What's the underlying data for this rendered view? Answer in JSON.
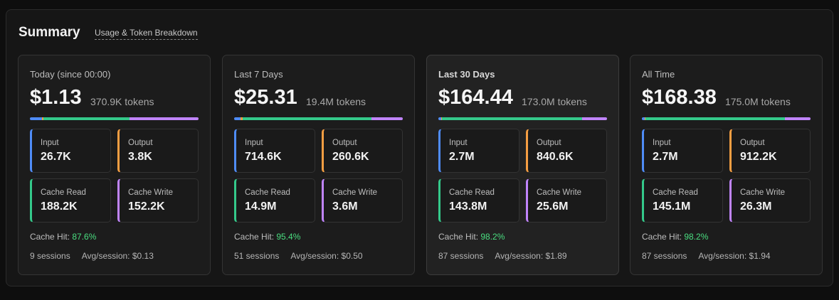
{
  "header": {
    "title": "Summary",
    "subtitle": "Usage & Token Breakdown"
  },
  "cards": [
    {
      "period": "Today (since 00:00)",
      "cost": "$1.13",
      "tokens": "370.9K tokens",
      "metrics": [
        {
          "label": "Input",
          "value": "26.7K"
        },
        {
          "label": "Output",
          "value": "3.8K"
        },
        {
          "label": "Cache Read",
          "value": "188.2K"
        },
        {
          "label": "Cache Write",
          "value": "152.2K"
        }
      ],
      "cache_hit_label": "Cache Hit:",
      "cache_hit": "87.6%",
      "sessions": "9 sessions",
      "avg_label": "Avg/session:",
      "avg": "$0.13"
    },
    {
      "period": "Last 7 Days",
      "cost": "$25.31",
      "tokens": "19.4M tokens",
      "metrics": [
        {
          "label": "Input",
          "value": "714.6K"
        },
        {
          "label": "Output",
          "value": "260.6K"
        },
        {
          "label": "Cache Read",
          "value": "14.9M"
        },
        {
          "label": "Cache Write",
          "value": "3.6M"
        }
      ],
      "cache_hit_label": "Cache Hit:",
      "cache_hit": "95.4%",
      "sessions": "51 sessions",
      "avg_label": "Avg/session:",
      "avg": "$0.50"
    },
    {
      "period": "Last 30 Days",
      "cost": "$164.44",
      "tokens": "173.0M tokens",
      "metrics": [
        {
          "label": "Input",
          "value": "2.7M"
        },
        {
          "label": "Output",
          "value": "840.6K"
        },
        {
          "label": "Cache Read",
          "value": "143.8M"
        },
        {
          "label": "Cache Write",
          "value": "25.6M"
        }
      ],
      "cache_hit_label": "Cache Hit:",
      "cache_hit": "98.2%",
      "sessions": "87 sessions",
      "avg_label": "Avg/session:",
      "avg": "$1.89"
    },
    {
      "period": "All Time",
      "cost": "$168.38",
      "tokens": "175.0M tokens",
      "metrics": [
        {
          "label": "Input",
          "value": "2.7M"
        },
        {
          "label": "Output",
          "value": "912.2K"
        },
        {
          "label": "Cache Read",
          "value": "145.1M"
        },
        {
          "label": "Cache Write",
          "value": "26.3M"
        }
      ],
      "cache_hit_label": "Cache Hit:",
      "cache_hit": "98.2%",
      "sessions": "87 sessions",
      "avg_label": "Avg/session:",
      "avg": "$1.94"
    }
  ]
}
